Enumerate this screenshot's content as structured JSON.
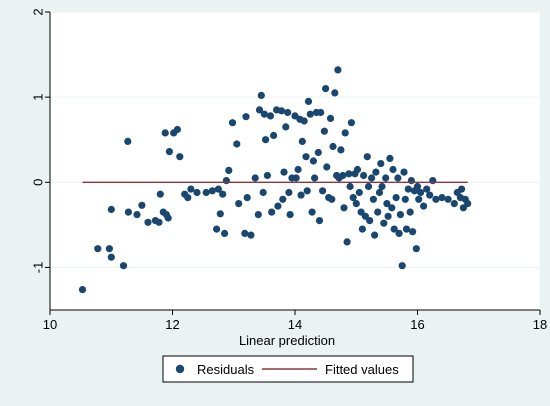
{
  "chart_data": {
    "type": "scatter",
    "title": "",
    "xlabel": "Linear prediction",
    "ylabel": "",
    "xlim": [
      10,
      18
    ],
    "ylim": [
      -1.5,
      2.0
    ],
    "x_ticks": [
      10,
      12,
      14,
      16,
      18
    ],
    "y_ticks": [
      -1,
      0,
      1,
      2
    ],
    "grid": "horizontal",
    "legend_position": "bottom",
    "colors": {
      "background": "#eaf2f3",
      "plot_area": "#ffffff",
      "marker": "#1a476f",
      "fitted_line": "#90353b",
      "gridline": "#eaf2f3"
    },
    "series": [
      {
        "name": "Residuals",
        "type": "scatter",
        "points": [
          [
            10.53,
            -1.26
          ],
          [
            10.78,
            -0.78
          ],
          [
            10.97,
            -0.78
          ],
          [
            11.0,
            -0.88
          ],
          [
            11.0,
            -0.32
          ],
          [
            11.2,
            -0.98
          ],
          [
            11.27,
            0.48
          ],
          [
            11.28,
            -0.35
          ],
          [
            11.42,
            -0.38
          ],
          [
            11.5,
            -0.27
          ],
          [
            11.6,
            -0.47
          ],
          [
            11.72,
            -0.45
          ],
          [
            11.78,
            -0.47
          ],
          [
            11.8,
            -0.14
          ],
          [
            11.85,
            -0.35
          ],
          [
            11.88,
            0.58
          ],
          [
            11.9,
            -0.38
          ],
          [
            11.93,
            -0.42
          ],
          [
            11.95,
            0.36
          ],
          [
            12.02,
            0.58
          ],
          [
            12.08,
            0.62
          ],
          [
            12.12,
            0.3
          ],
          [
            12.2,
            -0.14
          ],
          [
            12.25,
            -0.18
          ],
          [
            12.3,
            -0.08
          ],
          [
            12.4,
            -0.12
          ],
          [
            12.55,
            -0.12
          ],
          [
            12.65,
            -0.1
          ],
          [
            12.72,
            -0.55
          ],
          [
            12.75,
            -0.08
          ],
          [
            12.78,
            -0.37
          ],
          [
            12.82,
            -0.14
          ],
          [
            12.85,
            -0.6
          ],
          [
            12.88,
            0.02
          ],
          [
            12.92,
            0.14
          ],
          [
            12.98,
            0.7
          ],
          [
            13.05,
            0.45
          ],
          [
            13.08,
            -0.25
          ],
          [
            13.18,
            -0.6
          ],
          [
            13.2,
            0.77
          ],
          [
            13.22,
            -0.18
          ],
          [
            13.28,
            -0.62
          ],
          [
            13.35,
            0.05
          ],
          [
            13.4,
            -0.38
          ],
          [
            13.42,
            0.85
          ],
          [
            13.45,
            1.02
          ],
          [
            13.48,
            -0.12
          ],
          [
            13.5,
            0.8
          ],
          [
            13.52,
            0.5
          ],
          [
            13.55,
            0.08
          ],
          [
            13.6,
            0.78
          ],
          [
            13.62,
            -0.35
          ],
          [
            13.65,
            0.55
          ],
          [
            13.7,
            0.85
          ],
          [
            13.72,
            -0.28
          ],
          [
            13.78,
            0.84
          ],
          [
            13.8,
            -0.2
          ],
          [
            13.82,
            0.12
          ],
          [
            13.85,
            0.65
          ],
          [
            13.88,
            0.82
          ],
          [
            13.9,
            -0.12
          ],
          [
            13.92,
            -0.38
          ],
          [
            13.95,
            0.05
          ],
          [
            14.0,
            0.78
          ],
          [
            14.02,
            0.05
          ],
          [
            14.05,
            0.15
          ],
          [
            14.08,
            0.74
          ],
          [
            14.1,
            -0.15
          ],
          [
            14.12,
            0.48
          ],
          [
            14.15,
            0.72
          ],
          [
            14.18,
            0.3
          ],
          [
            14.2,
            -0.1
          ],
          [
            14.22,
            0.95
          ],
          [
            14.25,
            0.8
          ],
          [
            14.28,
            -0.35
          ],
          [
            14.3,
            0.25
          ],
          [
            14.32,
            0.05
          ],
          [
            14.35,
            0.82
          ],
          [
            14.38,
            0.35
          ],
          [
            14.4,
            -0.45
          ],
          [
            14.42,
            0.82
          ],
          [
            14.45,
            -0.1
          ],
          [
            14.48,
            0.6
          ],
          [
            14.5,
            1.1
          ],
          [
            14.52,
            0.18
          ],
          [
            14.55,
            -0.18
          ],
          [
            14.58,
            0.75
          ],
          [
            14.6,
            -0.2
          ],
          [
            14.62,
            0.42
          ],
          [
            14.65,
            1.05
          ],
          [
            14.68,
            0.08
          ],
          [
            14.7,
            1.32
          ],
          [
            14.72,
            0.05
          ],
          [
            14.75,
            0.38
          ],
          [
            14.78,
            0.08
          ],
          [
            14.8,
            -0.3
          ],
          [
            14.82,
            0.58
          ],
          [
            14.85,
            -0.7
          ],
          [
            14.88,
            0.1
          ],
          [
            14.9,
            -0.05
          ],
          [
            14.92,
            0.7
          ],
          [
            14.95,
            -0.18
          ],
          [
            14.98,
            0.1
          ],
          [
            15.0,
            -0.25
          ],
          [
            15.02,
            0.15
          ],
          [
            15.05,
            -0.12
          ],
          [
            15.08,
            -0.35
          ],
          [
            15.1,
            -0.55
          ],
          [
            15.12,
            0.08
          ],
          [
            15.15,
            -0.4
          ],
          [
            15.18,
            0.3
          ],
          [
            15.2,
            -0.05
          ],
          [
            15.22,
            -0.45
          ],
          [
            15.25,
            0.05
          ],
          [
            15.28,
            -0.2
          ],
          [
            15.3,
            -0.62
          ],
          [
            15.32,
            0.12
          ],
          [
            15.35,
            -0.35
          ],
          [
            15.38,
            -0.12
          ],
          [
            15.4,
            0.22
          ],
          [
            15.42,
            -0.05
          ],
          [
            15.45,
            -0.48
          ],
          [
            15.48,
            0.05
          ],
          [
            15.5,
            -0.25
          ],
          [
            15.52,
            -0.4
          ],
          [
            15.55,
            0.28
          ],
          [
            15.58,
            -0.3
          ],
          [
            15.6,
            0.15
          ],
          [
            15.62,
            -0.55
          ],
          [
            15.65,
            -0.18
          ],
          [
            15.68,
            0.05
          ],
          [
            15.7,
            -0.6
          ],
          [
            15.72,
            -0.38
          ],
          [
            15.75,
            -0.98
          ],
          [
            15.78,
            0.12
          ],
          [
            15.8,
            -0.2
          ],
          [
            15.82,
            -0.55
          ],
          [
            15.85,
            -0.08
          ],
          [
            15.88,
            -0.35
          ],
          [
            15.9,
            0.02
          ],
          [
            15.92,
            -0.58
          ],
          [
            15.95,
            -0.1
          ],
          [
            15.98,
            -0.78
          ],
          [
            16.0,
            -0.05
          ],
          [
            16.02,
            -0.2
          ],
          [
            16.05,
            -0.12
          ],
          [
            16.1,
            -0.28
          ],
          [
            16.15,
            -0.08
          ],
          [
            16.2,
            -0.15
          ],
          [
            16.25,
            0.02
          ],
          [
            16.3,
            -0.2
          ],
          [
            16.4,
            -0.18
          ],
          [
            16.5,
            -0.2
          ],
          [
            16.6,
            -0.25
          ],
          [
            16.65,
            -0.12
          ],
          [
            16.7,
            -0.18
          ],
          [
            16.72,
            -0.08
          ],
          [
            16.75,
            -0.3
          ],
          [
            16.78,
            -0.2
          ],
          [
            16.82,
            -0.25
          ]
        ]
      },
      {
        "name": "Fitted values",
        "type": "line",
        "x": [
          10.53,
          16.82
        ],
        "y": [
          0,
          0
        ]
      }
    ]
  }
}
